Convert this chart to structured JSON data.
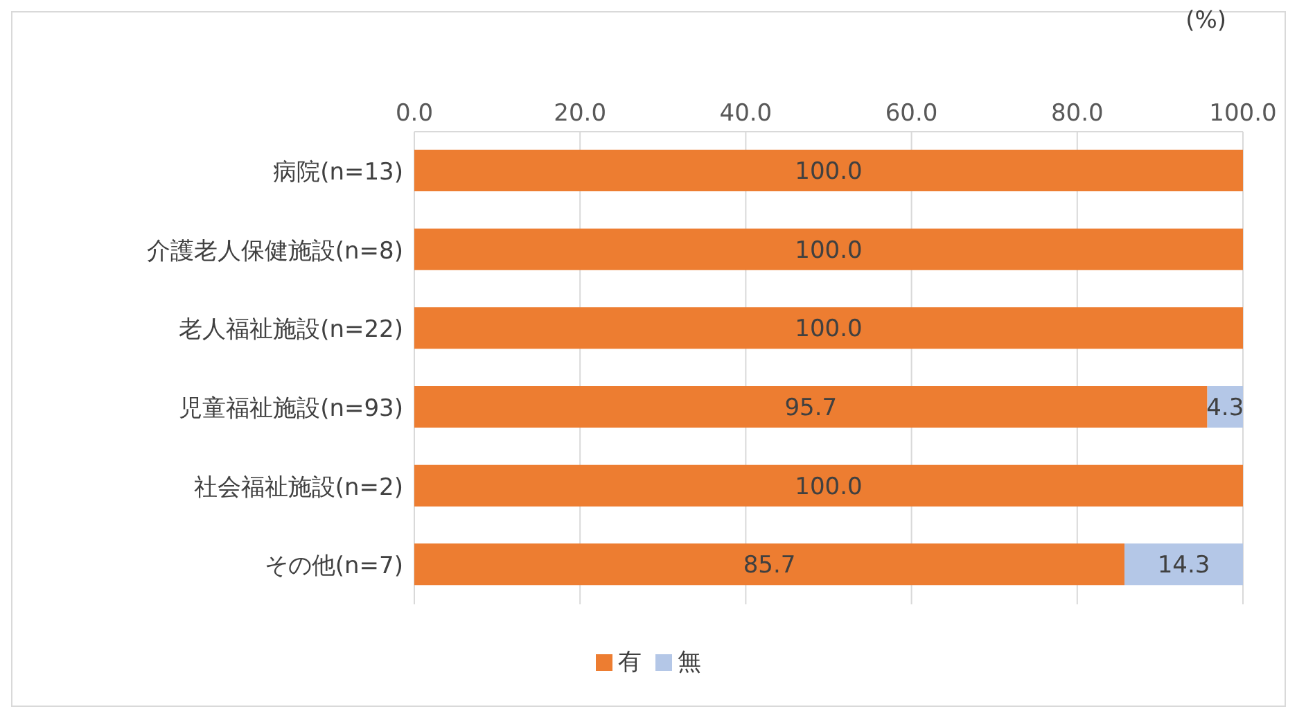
{
  "chart_data": {
    "type": "bar",
    "orientation": "horizontal",
    "stacked": true,
    "categories": [
      "病院(n=13)",
      "介護老人保健施設(n=8)",
      "老人福祉施設(n=22)",
      "児童福祉施設(n=93)",
      "社会福祉施設(n=2)",
      "その他(n=7)"
    ],
    "series": [
      {
        "name": "有",
        "color": "#ed7d31",
        "values": [
          100,
          100,
          100,
          95.7,
          100,
          85.7
        ],
        "value_labels": [
          "100.0",
          "100.0",
          "100.0",
          "95.7",
          "100.0",
          "85.7"
        ]
      },
      {
        "name": "無",
        "color": "#b4c7e7",
        "values": [
          0,
          0,
          0,
          4.3,
          0,
          14.3
        ],
        "value_labels": [
          null,
          null,
          null,
          "4.3",
          null,
          "14.3"
        ]
      }
    ],
    "xlim": [
      0,
      100
    ],
    "xticks": [
      {
        "value": 0,
        "label": "0.0"
      },
      {
        "value": 20,
        "label": "20.0"
      },
      {
        "value": 40,
        "label": "40.0"
      },
      {
        "value": 60,
        "label": "60.0"
      },
      {
        "value": 80,
        "label": "80.0"
      },
      {
        "value": 100,
        "label": "100.0"
      }
    ],
    "grid": "x",
    "legend": "bottom",
    "annotations": [
      "(%)"
    ]
  }
}
